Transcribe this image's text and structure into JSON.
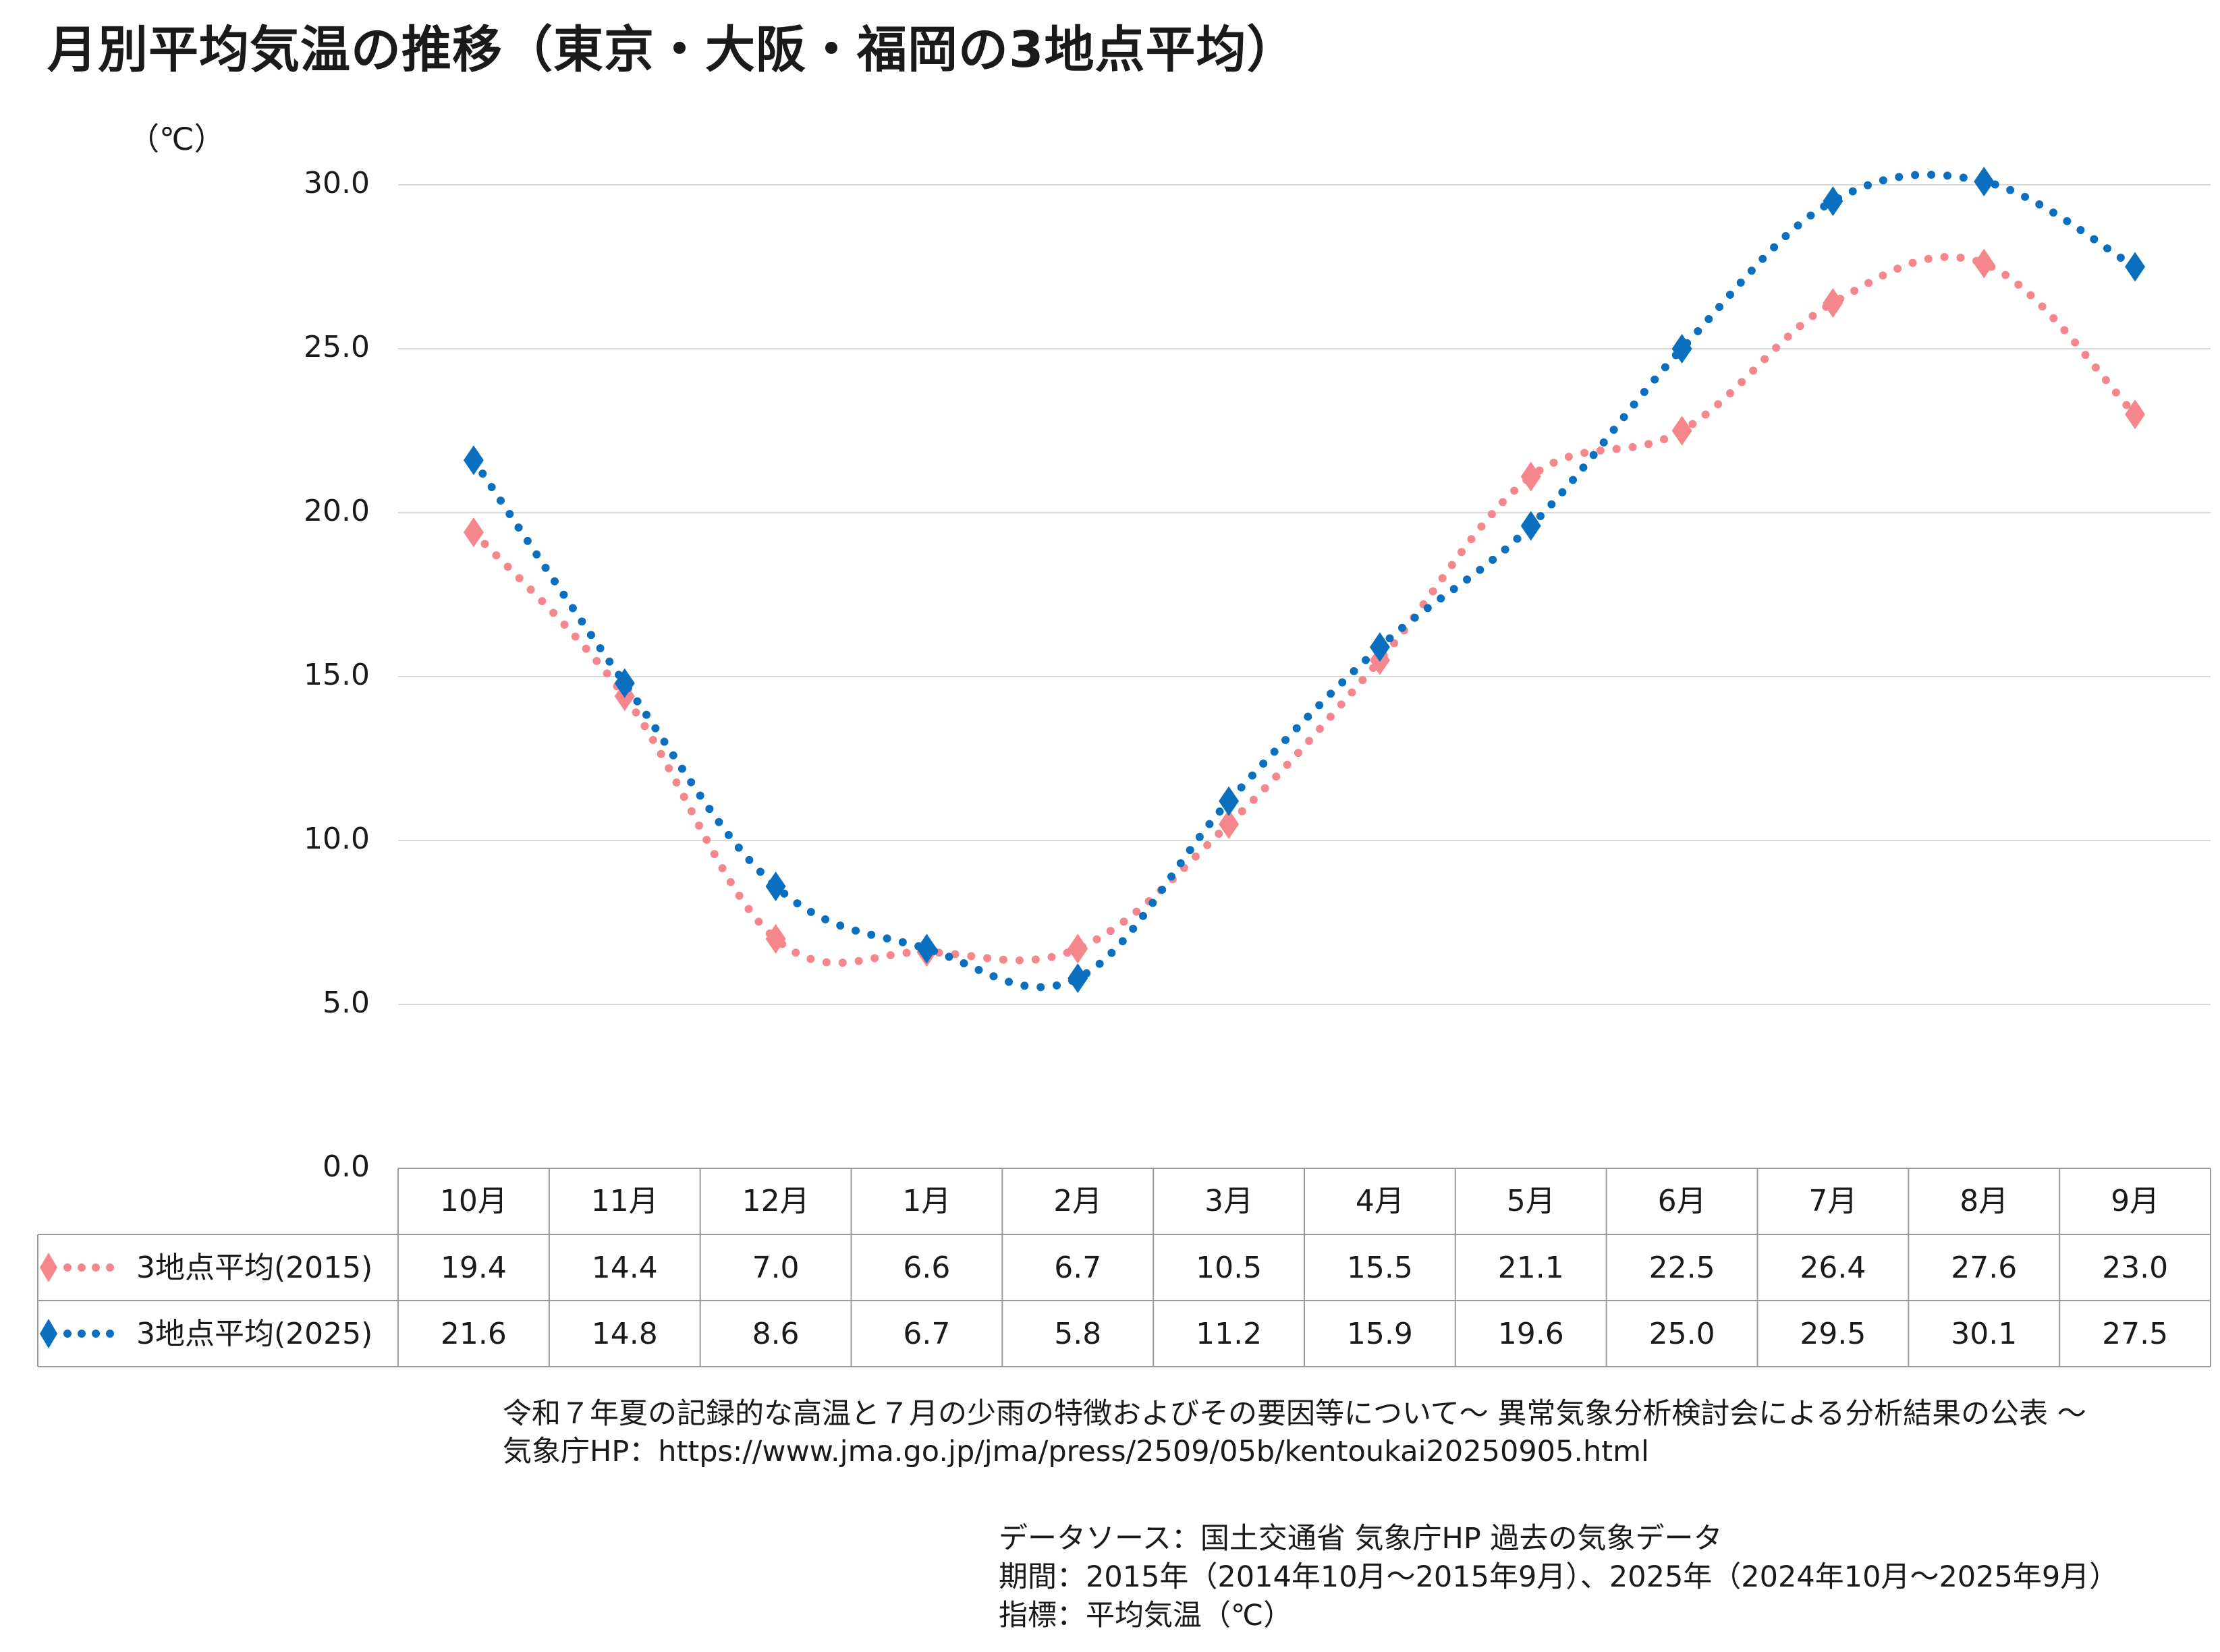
{
  "title": "月別平均気温の推移（東京・大阪・福岡の3地点平均）",
  "chart_data": {
    "type": "line",
    "title": "月別平均気温の推移（東京・大阪・福岡の3地点平均）",
    "ylabel": "（℃）",
    "xlabel": "",
    "ylim": [
      0,
      30
    ],
    "yticks": [
      "0.0",
      "5.0",
      "10.0",
      "15.0",
      "20.0",
      "25.0",
      "30.0"
    ],
    "grid": true,
    "categories": [
      "10月",
      "11月",
      "12月",
      "1月",
      "2月",
      "3月",
      "4月",
      "5月",
      "6月",
      "7月",
      "8月",
      "9月"
    ],
    "series": [
      {
        "name": "3地点平均(2015)",
        "color": "#f4868c",
        "values": [
          19.4,
          14.4,
          7.0,
          6.6,
          6.7,
          10.5,
          15.5,
          21.1,
          22.5,
          26.4,
          27.6,
          23.0
        ],
        "labels": [
          "19.4",
          "14.4",
          "7.0",
          "6.6",
          "6.7",
          "10.5",
          "15.5",
          "21.1",
          "22.5",
          "26.4",
          "27.6",
          "23.0"
        ]
      },
      {
        "name": "3地点平均(2025)",
        "color": "#0a6fbf",
        "values": [
          21.6,
          14.8,
          8.6,
          6.7,
          5.8,
          11.2,
          15.9,
          19.6,
          25.0,
          29.5,
          30.1,
          27.5
        ],
        "labels": [
          "21.6",
          "14.8",
          "8.6",
          "6.7",
          "5.8",
          "11.2",
          "15.9",
          "19.6",
          "25.0",
          "29.5",
          "30.1",
          "27.5"
        ]
      }
    ]
  },
  "source": {
    "line1": "令和７年夏の記録的な高温と７月の少雨の特徴およびその要因等について～ 異常気象分析検討会による分析結果の公表 ～",
    "line2": "気象庁HP：https://www.jma.go.jp/jma/press/2509/05b/kentoukai20250905.html",
    "data_source": "データソース：国土交通省 気象庁HP 過去の気象データ",
    "period": "期間：2015年（2014年10月～2015年9月）、2025年（2024年10月～2025年9月）",
    "indicator": "指標：平均気温（℃）"
  }
}
